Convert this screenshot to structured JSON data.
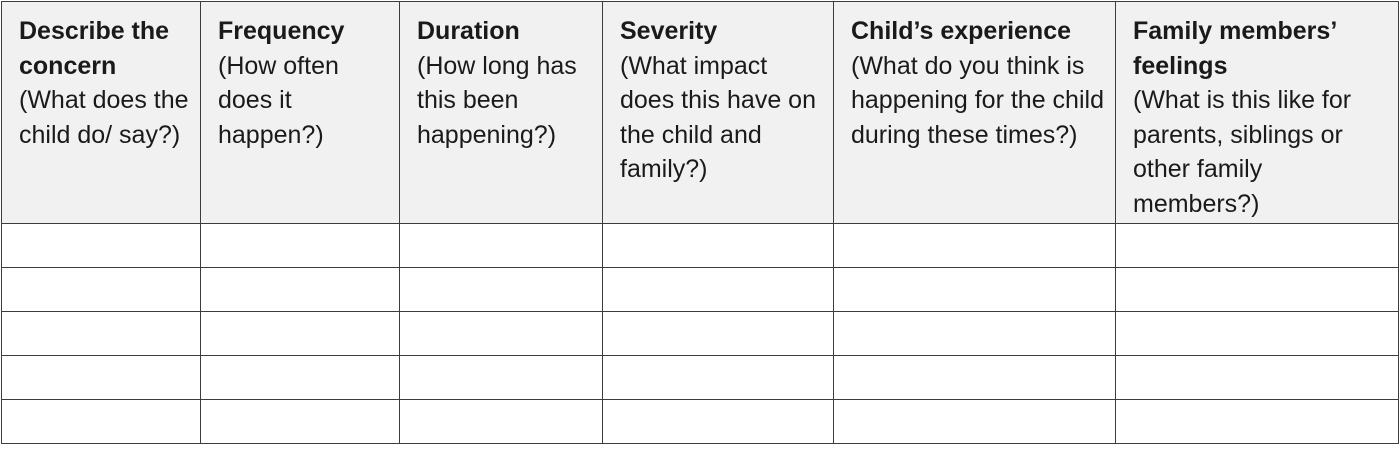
{
  "table": {
    "columns": [
      {
        "title": "Describe the concern",
        "subtitle": "(What does the child do/ say?)"
      },
      {
        "title": "Frequency",
        "subtitle": "(How often does it happen?)"
      },
      {
        "title": "Duration",
        "subtitle": "(How long has this been happening?)"
      },
      {
        "title": "Severity",
        "subtitle": "(What impact does this have on the child and family?)"
      },
      {
        "title": "Child’s experience",
        "subtitle": "(What do you think is happening for the child during these times?)"
      },
      {
        "title": "Family members’ feelings",
        "subtitle": "(What is this like for parents, siblings or other family members?)"
      }
    ],
    "rows": [
      [
        "",
        "",
        "",
        "",
        "",
        ""
      ],
      [
        "",
        "",
        "",
        "",
        "",
        ""
      ],
      [
        "",
        "",
        "",
        "",
        "",
        ""
      ],
      [
        "",
        "",
        "",
        "",
        "",
        ""
      ],
      [
        "",
        "",
        "",
        "",
        "",
        ""
      ]
    ]
  }
}
